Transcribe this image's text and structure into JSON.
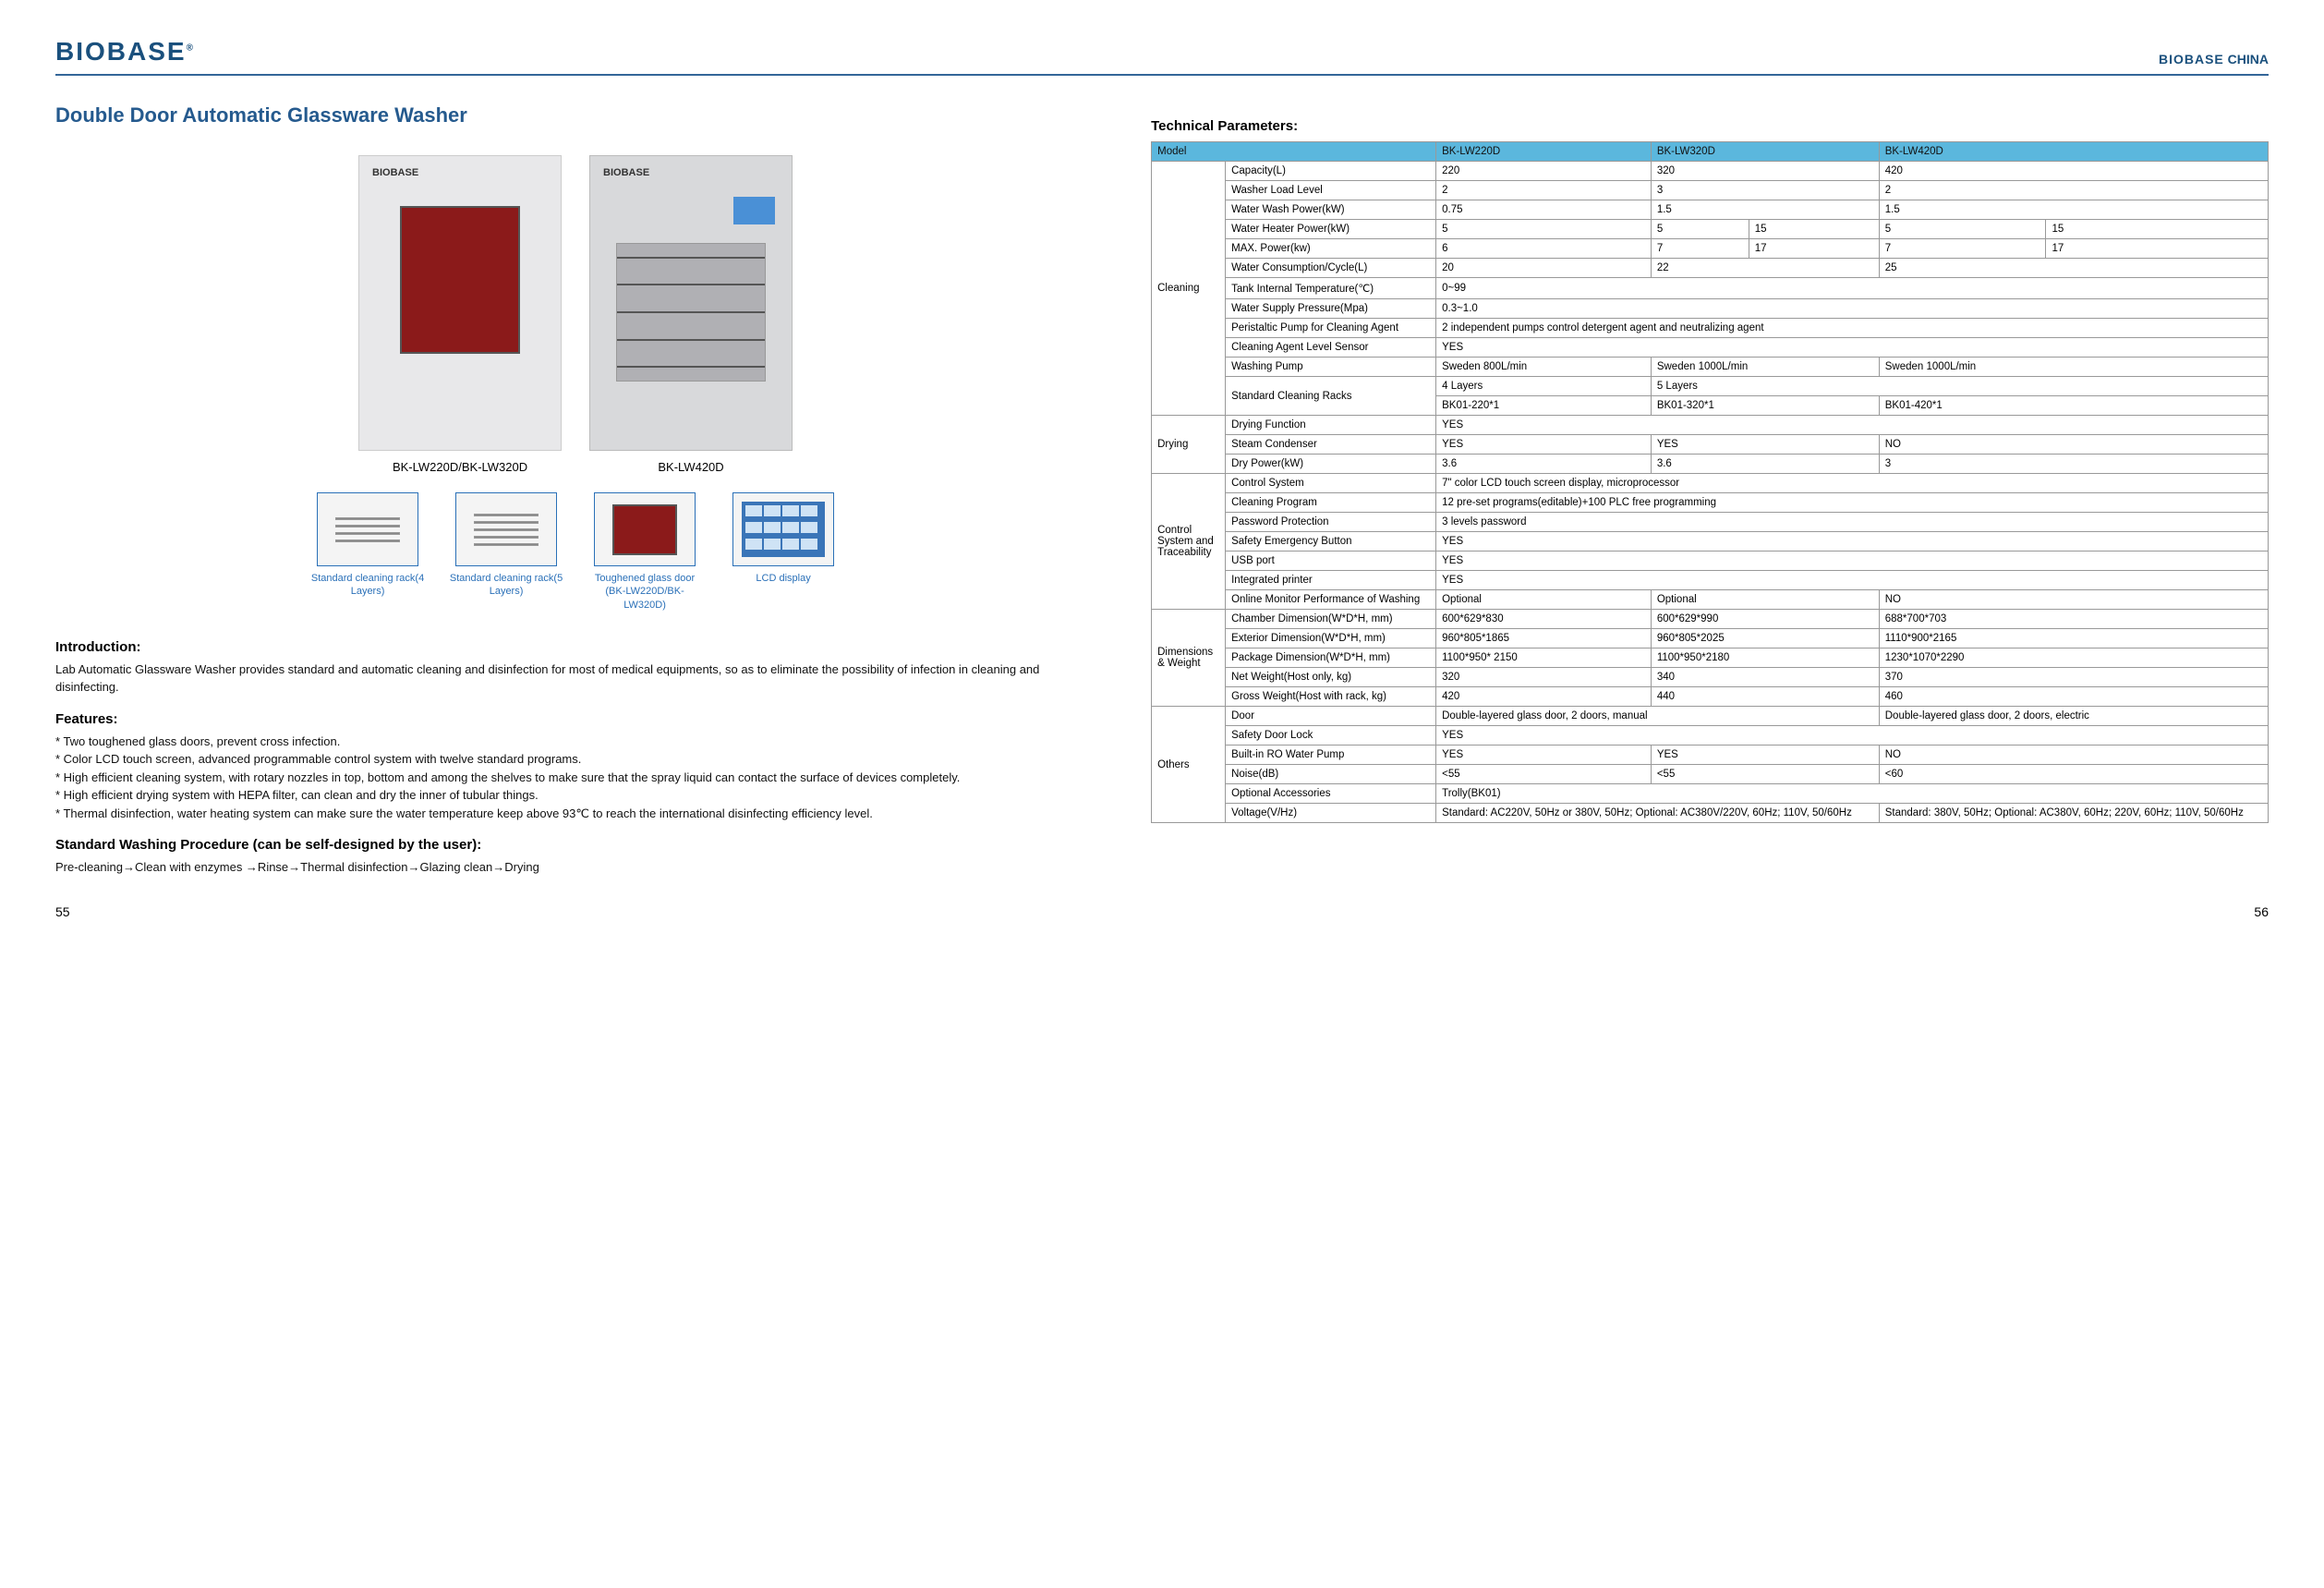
{
  "brand": "BIOBASE",
  "brand_r": "®",
  "brand_right": {
    "b1": "BIOBASE",
    "b2": " CHINA"
  },
  "title": "Double Door Automatic Glassware Washer",
  "products": [
    {
      "label": "BK-LW220D/BK-LW320D"
    },
    {
      "label": "BK-LW420D"
    }
  ],
  "thumbs": [
    {
      "name": "rack4",
      "label": "Standard cleaning rack(4 Layers)"
    },
    {
      "name": "rack5",
      "label": "Standard cleaning rack(5 Layers)"
    },
    {
      "name": "door",
      "label": "Toughened glass door (BK-LW220D/BK-LW320D)"
    },
    {
      "name": "lcd",
      "label": "LCD display"
    }
  ],
  "intro_h": "Introduction:",
  "intro": "Lab Automatic Glassware Washer provides standard and automatic cleaning and disinfection for most of medical equipments, so as to eliminate the possibility of infection in cleaning and disinfecting.",
  "feat_h": "Features:",
  "features": [
    "Two toughened glass doors, prevent cross infection.",
    "Color LCD touch screen, advanced programmable control system with twelve standard programs.",
    "High efficient cleaning system, with rotary nozzles in top, bottom and among the shelves to make sure that the spray liquid can contact the surface of devices completely.",
    "High efficient drying system with HEPA filter, can clean and dry the inner of tubular things.",
    "Thermal disinfection, water heating system can make sure the water temperature keep above 93℃ to reach the international disinfecting efficiency level."
  ],
  "swp_h": "Standard Washing Procedure (can be self-designed by the user):",
  "swp": "Pre-cleaning→Clean with enzymes →Rinse→Thermal disinfection→Glazing clean→Drying",
  "tp_h": "Technical Parameters:",
  "colors": {
    "header_bg": "#5bb7dd",
    "border": "#999",
    "title": "#255a8e",
    "link": "#2a70b8"
  },
  "table": {
    "head": [
      "Model",
      "BK-LW220D",
      "BK-LW320D",
      "BK-LW420D"
    ],
    "sections": [
      {
        "cat": "Cleaning",
        "rows": [
          {
            "label": "Capacity(L)",
            "cells": [
              "220",
              "320",
              "420"
            ]
          },
          {
            "label": "Washer Load Level",
            "cells": [
              "2",
              "3",
              "2"
            ]
          },
          {
            "label": "Water Wash Power(kW)",
            "cells": [
              "0.75",
              "1.5",
              "1.5"
            ]
          },
          {
            "label": "Water Heater Power(kW)",
            "cells": [
              [
                "5"
              ],
              [
                "5",
                "15"
              ],
              [
                "5",
                "15"
              ]
            ],
            "split": true
          },
          {
            "label": "MAX. Power(kw)",
            "cells": [
              [
                "6"
              ],
              [
                "7",
                "17"
              ],
              [
                "7",
                "17"
              ]
            ],
            "split": true
          },
          {
            "label": "Water Consumption/Cycle(L)",
            "cells": [
              "20",
              "22",
              "25"
            ]
          },
          {
            "label": "Tank Internal Temperature(℃)",
            "cells": [
              "0~99"
            ],
            "span": 3
          },
          {
            "label": "Water Supply Pressure(Mpa)",
            "cells": [
              "0.3~1.0"
            ],
            "span": 3
          },
          {
            "label": "Peristaltic Pump for Cleaning Agent",
            "cells": [
              "2 independent pumps control detergent agent and neutralizing agent"
            ],
            "span": 3
          },
          {
            "label": "Cleaning Agent Level Sensor",
            "cells": [
              "YES"
            ],
            "span": 3
          },
          {
            "label": "Washing Pump",
            "cells": [
              "Sweden 800L/min",
              "Sweden 1000L/min",
              "Sweden 1000L/min"
            ]
          },
          {
            "label": "Standard Cleaning Racks",
            "rows2": [
              {
                "cells": [
                  "4 Layers",
                  [
                    "5 Layers",
                    2
                  ]
                ]
              },
              {
                "cells": [
                  "BK01-220*1",
                  "BK01-320*1",
                  "BK01-420*1"
                ]
              }
            ]
          }
        ]
      },
      {
        "cat": "Drying",
        "rows": [
          {
            "label": "Drying Function",
            "cells": [
              "YES"
            ],
            "span": 3
          },
          {
            "label": "Steam Condenser",
            "cells": [
              "YES",
              "YES",
              "NO"
            ]
          },
          {
            "label": "Dry Power(kW)",
            "cells": [
              "3.6",
              "3.6",
              "3"
            ]
          }
        ]
      },
      {
        "cat": "Control System and Traceability",
        "rows": [
          {
            "label": "Control System",
            "cells": [
              "7\" color LCD touch screen display, microprocessor"
            ],
            "span": 3
          },
          {
            "label": "Cleaning Program",
            "cells": [
              "12 pre-set programs(editable)+100 PLC free programming"
            ],
            "span": 3
          },
          {
            "label": "Password Protection",
            "cells": [
              "3 levels password"
            ],
            "span": 3
          },
          {
            "label": "Safety Emergency Button",
            "cells": [
              "YES"
            ],
            "span": 3
          },
          {
            "label": "USB port",
            "cells": [
              "YES"
            ],
            "span": 3
          },
          {
            "label": "Integrated printer",
            "cells": [
              "YES"
            ],
            "span": 3
          },
          {
            "label": "Online Monitor Performance of Washing",
            "cells": [
              "Optional",
              "Optional",
              "NO"
            ]
          }
        ]
      },
      {
        "cat": "Dimensions & Weight",
        "rows": [
          {
            "label": "Chamber Dimension(W*D*H, mm)",
            "cells": [
              "600*629*830",
              "600*629*990",
              "688*700*703"
            ]
          },
          {
            "label": "Exterior Dimension(W*D*H, mm)",
            "cells": [
              "960*805*1865",
              "960*805*2025",
              "1110*900*2165"
            ]
          },
          {
            "label": "Package Dimension(W*D*H, mm)",
            "cells": [
              "1100*950* 2150",
              "1100*950*2180",
              "1230*1070*2290"
            ]
          },
          {
            "label": "Net Weight(Host only, kg)",
            "cells": [
              "320",
              "340",
              "370"
            ]
          },
          {
            "label": "Gross Weight(Host with rack, kg)",
            "cells": [
              "420",
              "440",
              "460"
            ]
          }
        ]
      },
      {
        "cat": "Others",
        "rows": [
          {
            "label": "Door",
            "cells": [
              [
                "Double-layered glass door, 2 doors, manual",
                2
              ],
              "Double-layered glass door, 2  doors, electric"
            ]
          },
          {
            "label": "Safety Door Lock",
            "cells": [
              "YES"
            ],
            "span": 3
          },
          {
            "label": "Built-in RO Water Pump",
            "cells": [
              "YES",
              "YES",
              "NO"
            ]
          },
          {
            "label": "Noise(dB)",
            "cells": [
              "<55",
              "<55",
              "<60"
            ]
          },
          {
            "label": "Optional Accessories",
            "cells": [
              "Trolly(BK01)"
            ],
            "span": 3
          },
          {
            "label": "Voltage(V/Hz)",
            "cells": [
              [
                "Standard: AC220V, 50Hz or 380V, 50Hz; Optional: AC380V/220V, 60Hz; 110V, 50/60Hz",
                2
              ],
              "Standard: 380V, 50Hz; Optional: AC380V, 60Hz; 220V, 60Hz; 110V, 50/60Hz"
            ]
          }
        ]
      }
    ]
  },
  "page_l": "55",
  "page_r": "56"
}
